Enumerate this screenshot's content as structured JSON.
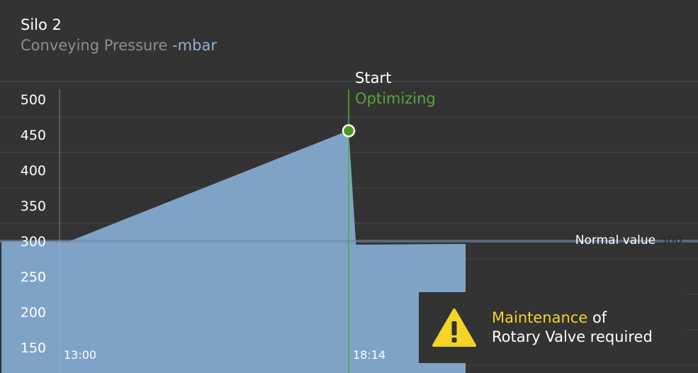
{
  "header": {
    "title": "Silo 2",
    "subtitle": "Conveying Pressure",
    "unit": "-mbar"
  },
  "marker": {
    "title": "Start",
    "status": "Optimizing"
  },
  "normal": {
    "label": "Normal value",
    "value": "300"
  },
  "alert": {
    "icon": "warning-icon",
    "highlight": "Maintenance",
    "text_after": "of",
    "line2": "Rotary Valve required"
  },
  "colors": {
    "background": "#333333",
    "area_fill": "#7fa3c6",
    "marker_line": "#4caf2e",
    "marker_dot": "#4a9a22",
    "alert_yellow": "#f5d327"
  },
  "chart_data": {
    "type": "area",
    "ylim": [
      120,
      530
    ],
    "y_ticks": [
      500,
      450,
      400,
      350,
      300,
      250,
      200,
      150
    ],
    "x_tick_labels": [
      {
        "label": "13:00",
        "t": 0
      },
      {
        "label": "18:14",
        "t": 314
      }
    ],
    "x_range_minutes": [
      -63,
      441
    ],
    "series": [
      {
        "values": [
          {
            "t": -63,
            "y": 300
          },
          {
            "t": 11,
            "y": 300
          },
          {
            "t": 314,
            "y": 456
          },
          {
            "t": 322,
            "y": 295
          },
          {
            "t": 441,
            "y": 296
          }
        ]
      }
    ],
    "normal_value": 300,
    "event": {
      "t": 314,
      "y": 456
    }
  }
}
